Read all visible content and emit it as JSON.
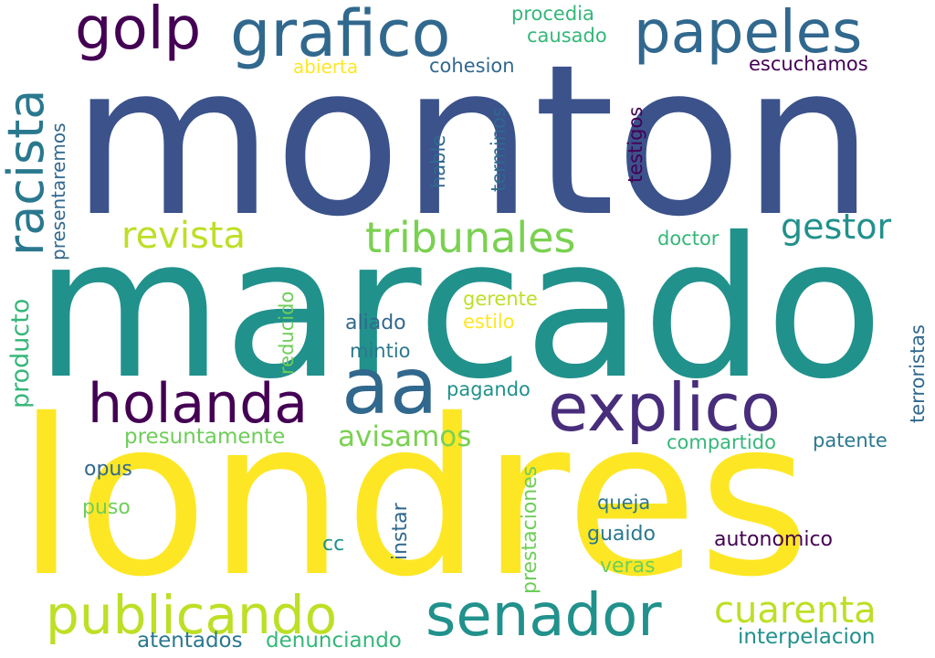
{
  "words": [
    {
      "text": "monton",
      "color": "#3b528b"
    },
    {
      "text": "marcado",
      "color": "#21918c"
    },
    {
      "text": "londres",
      "color": "#fde725"
    },
    {
      "text": "grafico",
      "color": "#31688e"
    },
    {
      "text": "papeles",
      "color": "#31688e"
    },
    {
      "text": "golp",
      "color": "#440154"
    },
    {
      "text": "racista",
      "color": "#2a788e"
    },
    {
      "text": "procedia",
      "color": "#35b779"
    },
    {
      "text": "causado",
      "color": "#35b779"
    },
    {
      "text": "abierta",
      "color": "#fde725"
    },
    {
      "text": "cohesion",
      "color": "#31688e"
    },
    {
      "text": "escuchamos",
      "color": "#440154"
    },
    {
      "text": "presentaremos",
      "color": "#31688e"
    },
    {
      "text": "hable",
      "color": "#31688e"
    },
    {
      "text": "terminos",
      "color": "#31688e"
    },
    {
      "text": "testigos",
      "color": "#440154"
    },
    {
      "text": "revista",
      "color": "#bddf26"
    },
    {
      "text": "tribunales",
      "color": "#7ad151"
    },
    {
      "text": "gestor",
      "color": "#21918c"
    },
    {
      "text": "doctor",
      "color": "#35b779"
    },
    {
      "text": "producto",
      "color": "#35b779"
    },
    {
      "text": "reducido",
      "color": "#6ece58"
    },
    {
      "text": "gerente",
      "color": "#bddf26"
    },
    {
      "text": "estilo",
      "color": "#fde725"
    },
    {
      "text": "aliado",
      "color": "#31688e"
    },
    {
      "text": "mintio",
      "color": "#2a788e"
    },
    {
      "text": "terroristas",
      "color": "#31688e"
    },
    {
      "text": "holanda",
      "color": "#440154"
    },
    {
      "text": "aa",
      "color": "#31688e"
    },
    {
      "text": "explico",
      "color": "#472d7b"
    },
    {
      "text": "pagando",
      "color": "#21918c"
    },
    {
      "text": "avisamos",
      "color": "#7ad151"
    },
    {
      "text": "presuntamente",
      "color": "#6ece58"
    },
    {
      "text": "compartido",
      "color": "#35b779"
    },
    {
      "text": "patente",
      "color": "#2a788e"
    },
    {
      "text": "opus",
      "color": "#31688e"
    },
    {
      "text": "puso",
      "color": "#6ece58"
    },
    {
      "text": "instar",
      "color": "#31688e"
    },
    {
      "text": "prestaciones",
      "color": "#6ece58"
    },
    {
      "text": "queja",
      "color": "#2a788e"
    },
    {
      "text": "guaido",
      "color": "#2a788e"
    },
    {
      "text": "autonomico",
      "color": "#440154"
    },
    {
      "text": "cc",
      "color": "#21918c"
    },
    {
      "text": "veras",
      "color": "#6ece58"
    },
    {
      "text": "publicando",
      "color": "#bddf26"
    },
    {
      "text": "senador",
      "color": "#21918c"
    },
    {
      "text": "cuarenta",
      "color": "#bddf26"
    },
    {
      "text": "atentados",
      "color": "#2a788e"
    },
    {
      "text": "denunciando",
      "color": "#35b779"
    },
    {
      "text": "interpelacion",
      "color": "#21918c"
    }
  ]
}
